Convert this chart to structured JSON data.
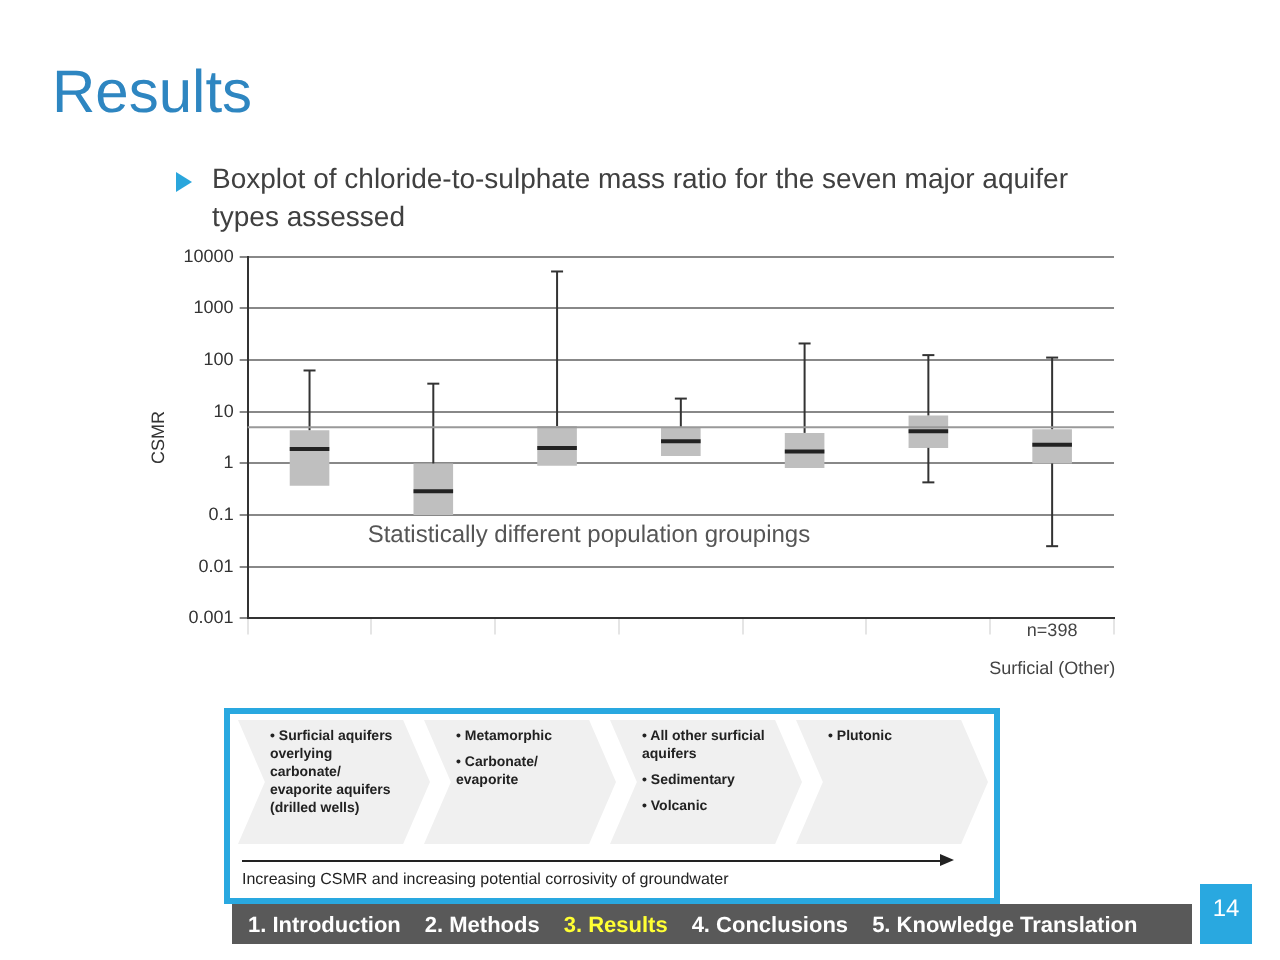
{
  "chart_data": {
    "type": "box",
    "title": "Results",
    "subtitle": "Boxplot of chloride-to-sulphate mass ratio for the seven major aquifer types assessed",
    "ylabel": "CSMR",
    "categories": [
      null,
      null,
      null,
      null,
      null,
      null,
      "Surficial (Other)"
    ],
    "boxes": [
      {
        "low": null,
        "q1": 0.37,
        "median": 1.9,
        "q3": 4.4,
        "high": 63
      },
      {
        "low": null,
        "q1": 0.1,
        "median": 0.29,
        "q3": 1.0,
        "high": 35
      },
      {
        "low": null,
        "q1": 0.9,
        "median": 2.0,
        "q3": 5.3,
        "high": 5200
      },
      {
        "low": null,
        "q1": 1.4,
        "median": 2.7,
        "q3": 5.1,
        "high": 18
      },
      {
        "low": null,
        "q1": 0.82,
        "median": 1.7,
        "q3": 3.9,
        "high": 210
      },
      {
        "low": 0.43,
        "q1": 2.0,
        "median": 4.2,
        "q3": 8.5,
        "high": 125
      },
      {
        "low": 0.025,
        "q1": 1.0,
        "median": 2.3,
        "q3": 4.6,
        "high": 112
      }
    ],
    "color": "#bfbfbf",
    "log": true,
    "ylim": [
      0.001,
      10000
    ],
    "yticks": [
      0.001,
      0.01,
      0.1,
      1,
      10,
      100,
      1000,
      10000
    ],
    "grid": true,
    "legend": false,
    "ref_lines": [
      {
        "axis": "y",
        "value": 5
      }
    ],
    "annotations": [
      "Statistically different population groupings",
      "n=398",
      "• Surficial aquifers overlying carbonate/ evaporite aquifers (drilled wells)",
      "• Metamorphic",
      "• Carbonate/ evaporite",
      "• All other surficial aquifers",
      "• Sedimentary",
      "• Volcanic",
      "• Plutonic",
      "Increasing CSMR and increasing potential corrosivity of groundwater",
      "1. Introduction",
      "2. Methods",
      "3. Results",
      "4. Conclusions",
      "5. Knowledge Translation",
      "14"
    ]
  }
}
